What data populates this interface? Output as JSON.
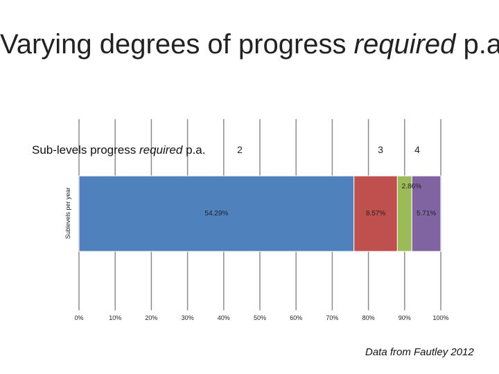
{
  "slide": {
    "title_plain": "Varying degrees of progress ",
    "title_italic": "required",
    "title_end": " p.a.",
    "footnote": "Data from Fautley 2012"
  },
  "chart_data": {
    "type": "stacked-bar-100",
    "orientation": "horizontal",
    "title_plain": "Sub-levels progress ",
    "title_italic": "required",
    "title_end": " p.a.",
    "ylabel": "Sublevels per year",
    "xlim": [
      0,
      100
    ],
    "x_ticks": [
      "0%",
      "10%",
      "20%",
      "30%",
      "40%",
      "50%",
      "60%",
      "70%",
      "80%",
      "90%",
      "100%"
    ],
    "legend": [
      "2",
      "3",
      "4"
    ],
    "series": [
      {
        "name": "2",
        "value": 54.29,
        "label": "54.29%",
        "color": "#4f81bd"
      },
      {
        "name": "3",
        "value": 8.57,
        "label": "8.57%",
        "color": "#c0504d"
      },
      {
        "name": "",
        "value": 2.86,
        "label": "2.86%",
        "color": "#9bbb59"
      },
      {
        "name": "4",
        "value": 5.71,
        "label": "5.71%",
        "color": "#8064a2"
      }
    ]
  }
}
